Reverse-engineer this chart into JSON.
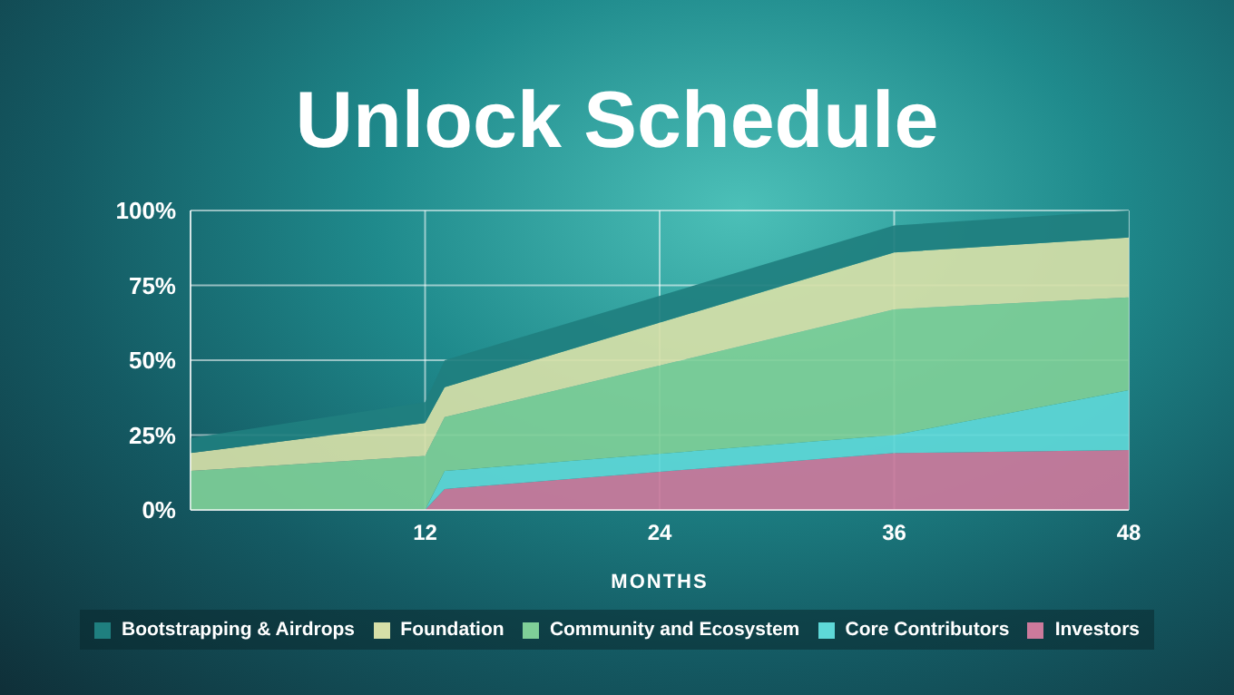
{
  "chart_data": {
    "type": "area",
    "title": "Unlock Schedule",
    "xlabel": "MONTHS",
    "stacked": true,
    "x": [
      0,
      12,
      13,
      36,
      48
    ],
    "xlim": [
      0,
      48
    ],
    "xticks": [
      {
        "value": 0,
        "label": null
      },
      12,
      24,
      36,
      48
    ],
    "ylim": [
      0,
      100
    ],
    "yticks": [
      {
        "value": 0,
        "label": "0%"
      },
      {
        "value": 25,
        "label": "25%"
      },
      {
        "value": 50,
        "label": "50%"
      },
      {
        "value": 75,
        "label": "75%"
      },
      {
        "value": 100,
        "label": "100%"
      }
    ],
    "grid": true,
    "legend": "bottom",
    "series": [
      {
        "name": "Investors",
        "color": "#cc7a9c",
        "values": [
          0,
          0,
          7,
          19,
          20
        ]
      },
      {
        "name": "Core Contributors",
        "color": "#5ed8d8",
        "values": [
          0,
          0,
          6,
          6,
          20
        ]
      },
      {
        "name": "Community and Ecosystem",
        "color": "#7fcf98",
        "values": [
          13,
          18,
          18,
          42,
          31
        ]
      },
      {
        "name": "Foundation",
        "color": "#d6dfa8",
        "values": [
          6,
          11,
          10,
          19,
          20
        ]
      },
      {
        "name": "Bootstrapping & Airdrops",
        "color": "#1f7f7f",
        "values": [
          5,
          7,
          9,
          9,
          9
        ]
      }
    ]
  }
}
